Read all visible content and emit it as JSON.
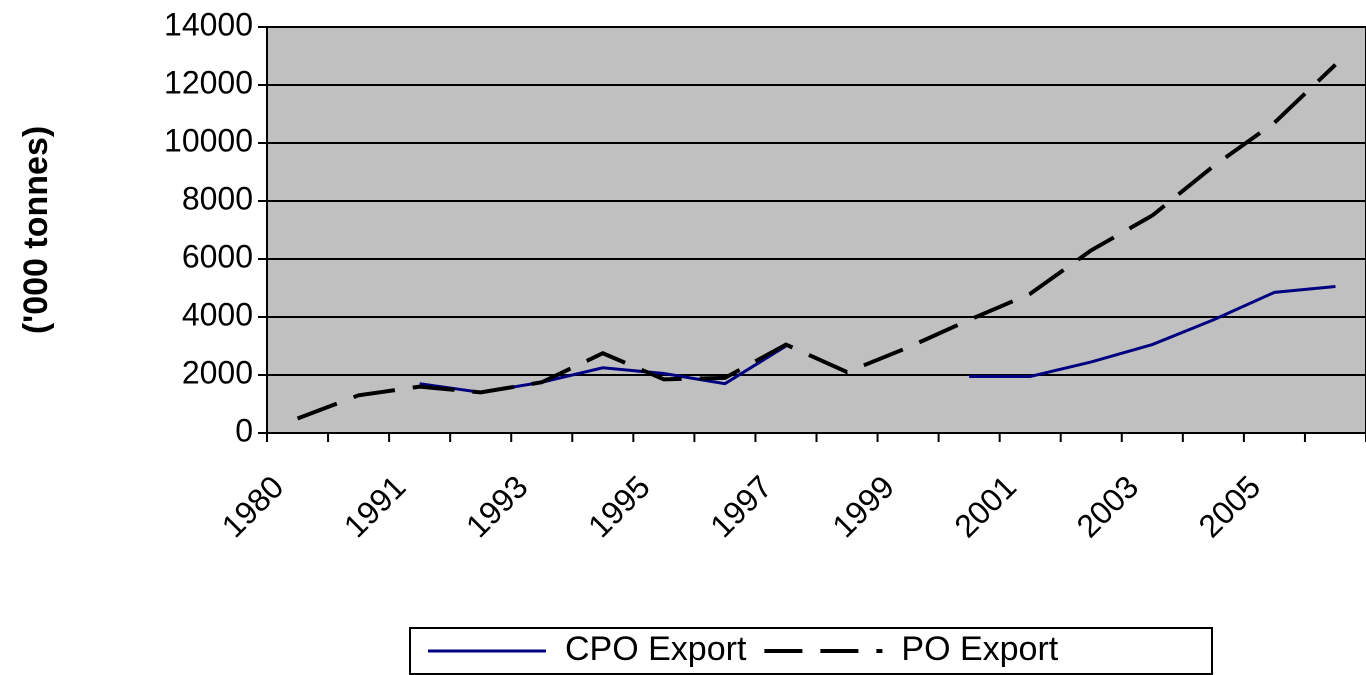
{
  "chart_data": {
    "type": "line",
    "y_label": "('000 tonnes)",
    "categories": [
      "1980",
      null,
      "1991",
      null,
      "1993",
      null,
      "1995",
      null,
      "1997",
      null,
      "1999",
      null,
      "2001",
      null,
      "2003",
      null,
      "2005",
      null
    ],
    "series": [
      {
        "name": "CPO Export",
        "color": "#000080",
        "style": "solid",
        "values": [
          null,
          null,
          1700,
          1400,
          1750,
          2250,
          2050,
          1700,
          3000,
          null,
          null,
          1950,
          1950,
          2450,
          3050,
          3900,
          4850,
          5050
        ]
      },
      {
        "name": "PO Export",
        "color": "#000000",
        "style": "dashed",
        "values": [
          500,
          1300,
          1600,
          1400,
          1750,
          2750,
          1850,
          1900,
          3050,
          2100,
          2950,
          3900,
          4800,
          6300,
          7500,
          9200,
          10700,
          12700
        ]
      }
    ],
    "ylim": [
      0,
      14000
    ],
    "yticks": [
      0,
      2000,
      4000,
      6000,
      8000,
      10000,
      12000,
      14000
    ],
    "grid": true,
    "plot_background": "#c0c0c0",
    "legend": "bottom"
  }
}
